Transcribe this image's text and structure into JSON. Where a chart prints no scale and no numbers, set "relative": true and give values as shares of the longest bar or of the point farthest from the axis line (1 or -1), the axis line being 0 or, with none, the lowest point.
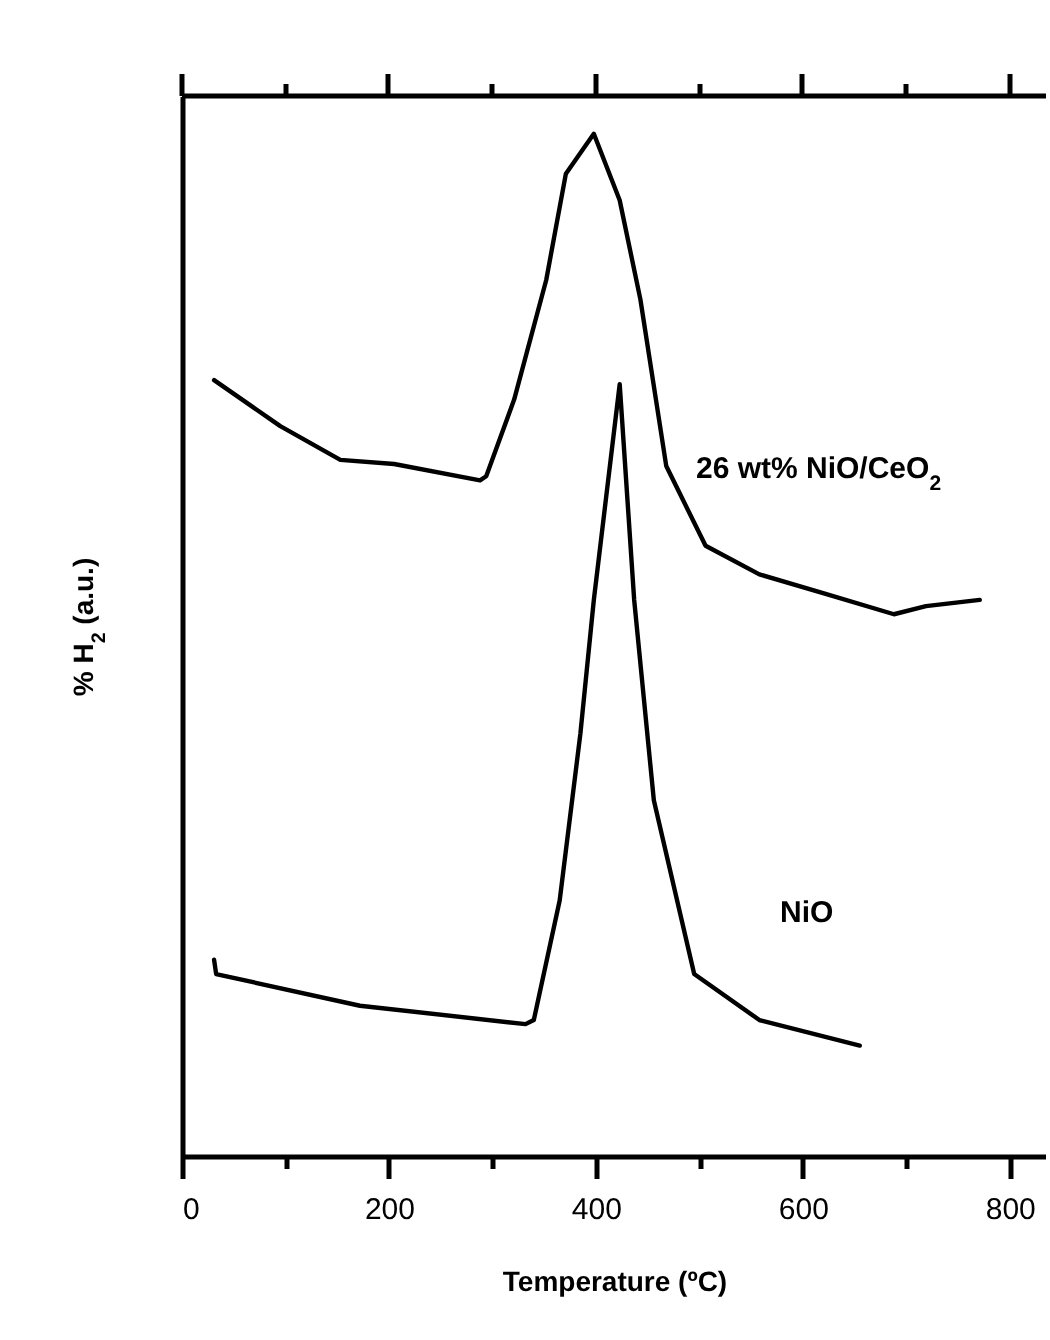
{
  "chart_data": {
    "type": "line",
    "relative": true,
    "xlabel": "Temperature (ºC)",
    "ylabel": "% H$_{2}$ (a.u.)",
    "xlim": [
      0,
      835
    ],
    "xticks": [
      0,
      {
        "value": 100,
        "label": null
      },
      200,
      {
        "value": 300,
        "label": null
      },
      400,
      {
        "value": 500,
        "label": null
      },
      600,
      {
        "value": 700,
        "label": null
      },
      800
    ],
    "series": [
      {
        "name": "26 wt% NiO/CeO$_{2}$",
        "color": "#000000",
        "x": [
          31,
          95,
          153,
          205,
          288,
          294,
          321,
          352,
          371,
          398,
          423,
          443,
          468,
          506,
          558,
          622,
          688,
          719,
          771
        ],
        "values": [
          0.759,
          0.714,
          0.681,
          0.677,
          0.661,
          0.665,
          0.74,
          0.857,
          0.961,
          1.0,
          0.935,
          0.838,
          0.675,
          0.597,
          0.569,
          0.55,
          0.53,
          0.538,
          0.544
        ]
      },
      {
        "name": "NiO",
        "color": "#000000",
        "x": [
          31,
          33,
          172,
          332,
          340,
          365,
          385,
          398,
          423,
          437,
          456,
          495,
          558,
          655
        ],
        "values": [
          0.192,
          0.178,
          0.147,
          0.129,
          0.133,
          0.25,
          0.413,
          0.544,
          0.755,
          0.544,
          0.348,
          0.178,
          0.133,
          0.108
        ]
      }
    ],
    "grid": false,
    "legend": false,
    "marker": "none",
    "line_style": "solid"
  }
}
